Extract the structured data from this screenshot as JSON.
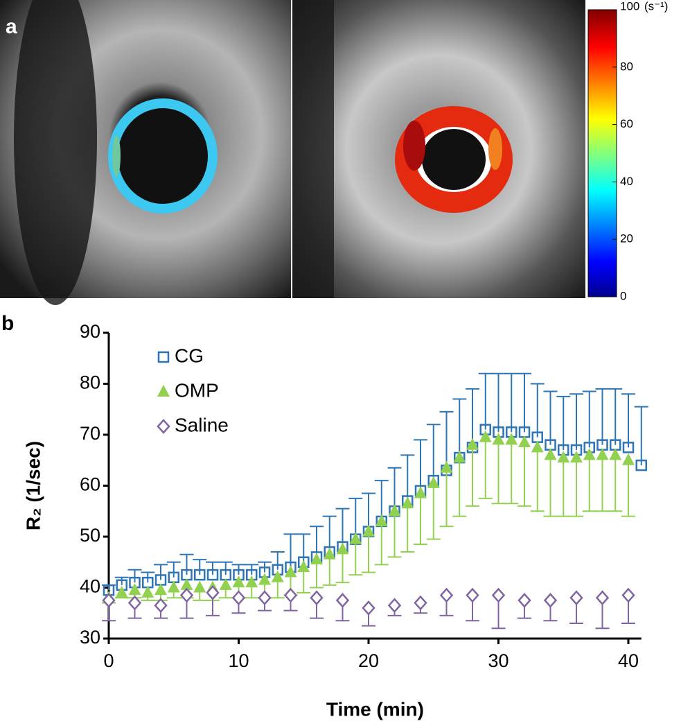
{
  "panel_a": {
    "label": "a",
    "colorbar": {
      "unit": "(s⁻¹)",
      "lim": [
        0,
        100
      ],
      "ticks": [
        0,
        20,
        40,
        60,
        80,
        100
      ]
    }
  },
  "panel_b": {
    "label": "b",
    "chart_data": {
      "type": "errorbar-scatter",
      "xlabel": "Time (min)",
      "ylabel": "R₂ (1/sec)",
      "xlim": [
        0,
        41
      ],
      "ylim": [
        30,
        90
      ],
      "xticks": [
        0,
        10,
        20,
        30,
        40
      ],
      "yticks": [
        30,
        40,
        50,
        60,
        70,
        80,
        90
      ],
      "series": [
        {
          "name": "CG",
          "color": "#2e75b6",
          "marker": "square",
          "error_direction": "up",
          "x": [
            0,
            1,
            2,
            3,
            4,
            5,
            6,
            7,
            8,
            9,
            10,
            11,
            12,
            13,
            14,
            15,
            16,
            17,
            18,
            19,
            20,
            21,
            22,
            23,
            24,
            25,
            26,
            27,
            28,
            29,
            30,
            31,
            32,
            33,
            34,
            35,
            36,
            37,
            38,
            39,
            40,
            41
          ],
          "values": [
            39.5,
            40.5,
            41,
            41,
            41.5,
            42,
            42.5,
            42.5,
            42.5,
            42.5,
            42.5,
            42.5,
            43,
            43.5,
            44,
            45,
            46,
            47,
            48,
            49.5,
            51,
            53,
            55,
            57,
            59,
            61,
            63,
            65.5,
            67.5,
            71,
            70.5,
            70.5,
            70.5,
            69.5,
            68,
            67,
            67,
            67.5,
            68,
            68,
            67.5,
            64
          ],
          "errors": [
            1,
            1.5,
            2.5,
            2,
            3,
            3,
            4,
            3,
            2.5,
            2.5,
            2,
            2,
            2,
            3.5,
            6.5,
            5.5,
            6,
            7,
            7.5,
            8,
            7.5,
            8,
            8.5,
            9,
            10,
            11,
            11.5,
            11.5,
            11.5,
            11,
            11.5,
            11.5,
            11.5,
            10.5,
            10.5,
            10.5,
            11,
            11,
            11,
            11,
            10.5,
            11.5
          ]
        },
        {
          "name": "OMP",
          "color": "#92d050",
          "marker": "triangle",
          "error_direction": "down",
          "x": [
            0,
            1,
            2,
            3,
            4,
            5,
            6,
            7,
            8,
            9,
            10,
            11,
            12,
            13,
            14,
            15,
            16,
            17,
            18,
            19,
            20,
            21,
            22,
            23,
            24,
            25,
            26,
            27,
            28,
            29,
            30,
            31,
            32,
            33,
            34,
            35,
            36,
            37,
            38,
            39,
            40
          ],
          "values": [
            38,
            39,
            39.5,
            39,
            39.5,
            40,
            40.5,
            40,
            40,
            40.5,
            41,
            41,
            41.5,
            42,
            43,
            44,
            45.5,
            46.5,
            47.5,
            49.5,
            51,
            53,
            55,
            56.5,
            58.5,
            60.5,
            63.5,
            65.5,
            68,
            69.5,
            69,
            69,
            68.5,
            67.5,
            66,
            65.5,
            65.5,
            66,
            66,
            66,
            65
          ],
          "errors": [
            1,
            1,
            1.5,
            1.5,
            2,
            2,
            2.5,
            2.5,
            2.5,
            2.5,
            3,
            3,
            3.5,
            4,
            4.5,
            5,
            5.5,
            6,
            6.5,
            7,
            8,
            8.5,
            9,
            9.5,
            10,
            11,
            11.5,
            11.5,
            12,
            12,
            12.5,
            12.5,
            12.5,
            12.5,
            12,
            11.5,
            11.5,
            11,
            11,
            11,
            11
          ]
        },
        {
          "name": "Saline",
          "color": "#8064a2",
          "marker": "diamond",
          "error_direction": "down",
          "x": [
            0,
            2,
            4,
            6,
            8,
            10,
            12,
            14,
            16,
            18,
            20,
            22,
            24,
            26,
            28,
            30,
            32,
            34,
            36,
            38,
            40
          ],
          "values": [
            37.5,
            37,
            36.5,
            38.5,
            39,
            38,
            38,
            38.5,
            38,
            37.5,
            36,
            36.5,
            37,
            38.5,
            38.5,
            38.5,
            37.5,
            37.5,
            38,
            38,
            38.5
          ],
          "errors": [
            4,
            3,
            2.5,
            4.5,
            4.5,
            3,
            2.5,
            3,
            4,
            4,
            3.5,
            2,
            2,
            4,
            5,
            6.5,
            3.5,
            4,
            5,
            6,
            5.5
          ]
        }
      ]
    }
  }
}
